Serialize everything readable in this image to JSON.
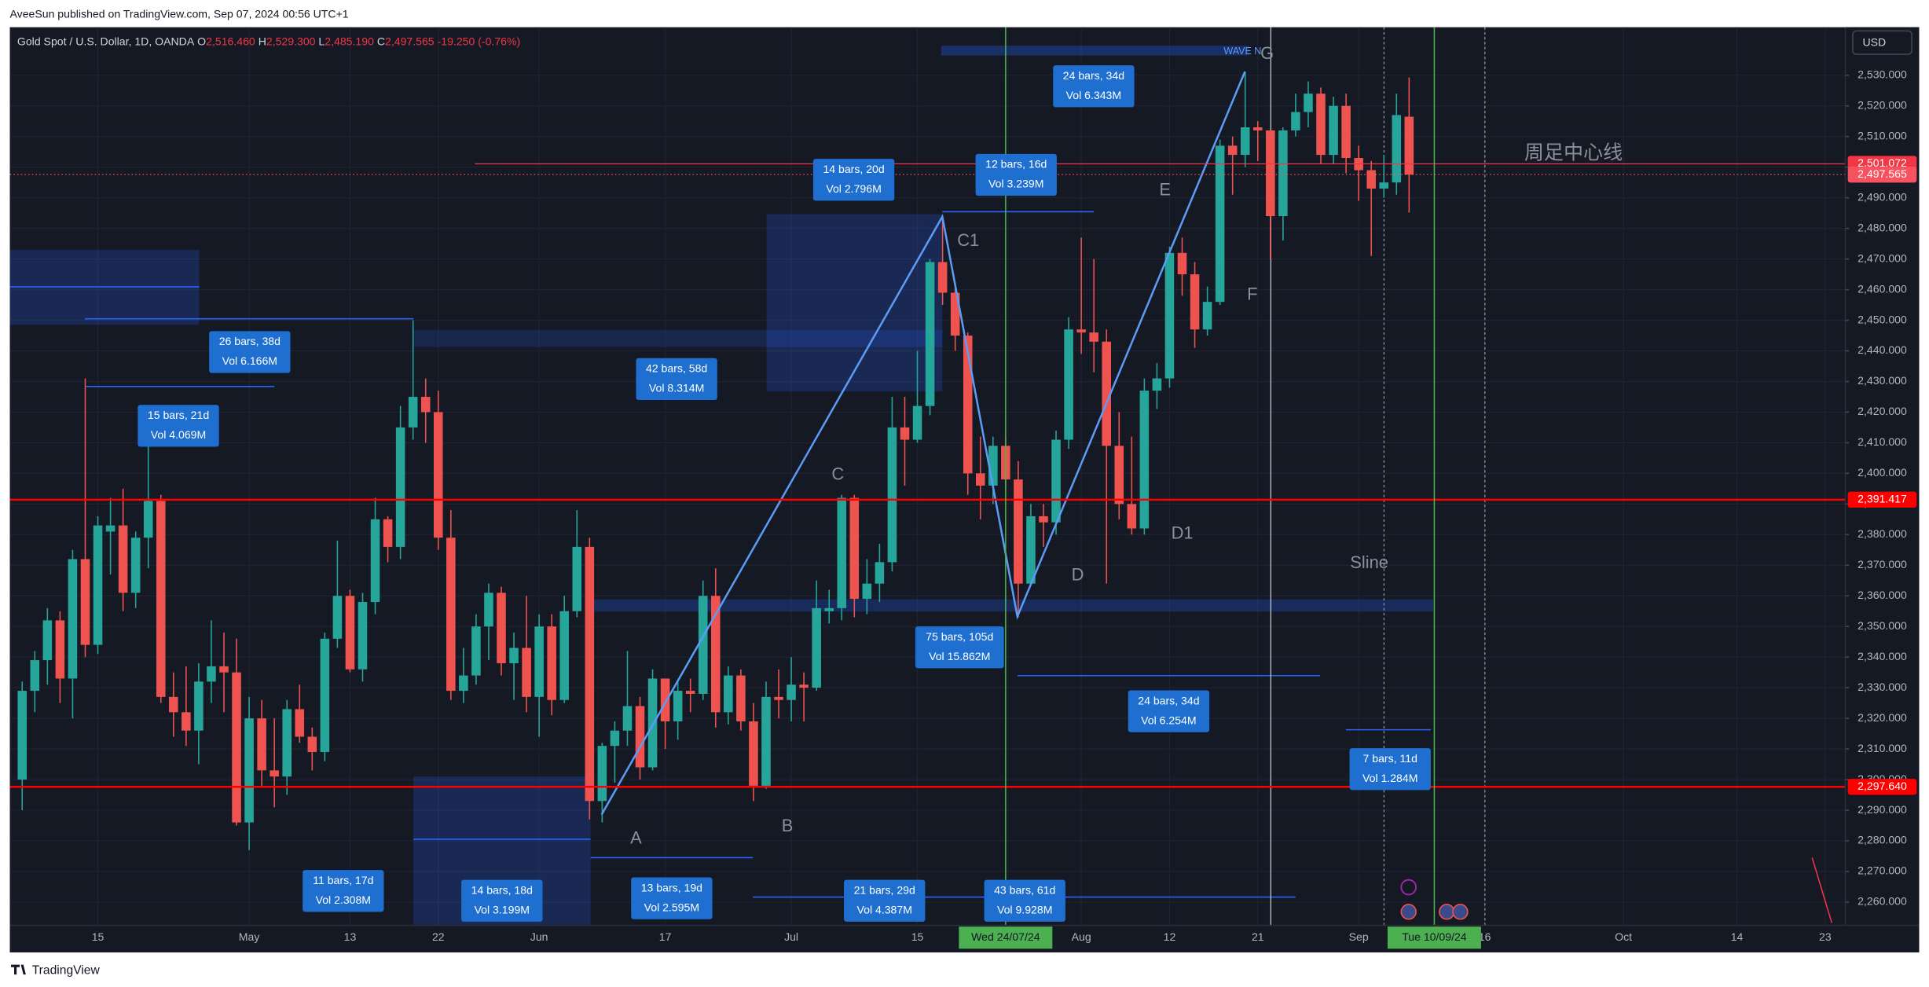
{
  "header": {
    "publisher": "AveeSun published on TradingView.com, Sep 07, 2024 00:56 UTC+1",
    "symbol": "Gold Spot / U.S. Dollar, 1D, OANDA",
    "ohlc": [
      {
        "key": "O",
        "value": "2,516.460"
      },
      {
        "key": "H",
        "value": "2,529.300"
      },
      {
        "key": "L",
        "value": "2,485.190"
      },
      {
        "key": "C",
        "value": "2,497.565"
      }
    ],
    "change": "-19.250 (-0.76%)",
    "currency": "USD"
  },
  "footer": {
    "brand": "TradingView"
  },
  "chart_data": {
    "type": "candlestick",
    "up_color": "#26a69a",
    "down_color": "#ef5350",
    "grid": true,
    "xlim": [
      -0.98,
      144.6
    ],
    "ylim": [
      2252.4,
      2545.7
    ],
    "xticks": [
      {
        "value": 6,
        "label": "15"
      },
      {
        "value": 18,
        "label": "May"
      },
      {
        "value": 26,
        "label": "13"
      },
      {
        "value": 33,
        "label": "22"
      },
      {
        "value": 41,
        "label": "Jun"
      },
      {
        "value": 51,
        "label": "17"
      },
      {
        "value": 61,
        "label": "Jul"
      },
      {
        "value": 71,
        "label": "15"
      },
      {
        "value": 84,
        "label": "Aug"
      },
      {
        "value": 91,
        "label": "12"
      },
      {
        "value": 98,
        "label": "21"
      },
      {
        "value": 106,
        "label": "Sep"
      },
      {
        "value": 116,
        "label": "16"
      },
      {
        "value": 127,
        "label": "Oct"
      },
      {
        "value": 136,
        "label": "14"
      },
      {
        "value": 143,
        "label": "23"
      }
    ],
    "yticks": [
      {
        "value": 2260,
        "label": "2,260.000"
      },
      {
        "value": 2270,
        "label": "2,270.000"
      },
      {
        "value": 2280,
        "label": "2,280.000"
      },
      {
        "value": 2290,
        "label": "2,290.000"
      },
      {
        "value": 2300,
        "label": "2,300.000"
      },
      {
        "value": 2310,
        "label": "2,310.000"
      },
      {
        "value": 2320,
        "label": "2,320.000"
      },
      {
        "value": 2330,
        "label": "2,330.000"
      },
      {
        "value": 2340,
        "label": "2,340.000"
      },
      {
        "value": 2350,
        "label": "2,350.000"
      },
      {
        "value": 2360,
        "label": "2,360.000"
      },
      {
        "value": 2370,
        "label": "2,370.000"
      },
      {
        "value": 2380,
        "label": "2,380.000"
      },
      {
        "value": 2390,
        "label": "2,390.000"
      },
      {
        "value": 2400,
        "label": "2,400.000"
      },
      {
        "value": 2410,
        "label": "2,410.000"
      },
      {
        "value": 2420,
        "label": "2,420.000"
      },
      {
        "value": 2430,
        "label": "2,430.000"
      },
      {
        "value": 2440,
        "label": "2,440.000"
      },
      {
        "value": 2450,
        "label": "2,450.000"
      },
      {
        "value": 2460,
        "label": "2,460.000"
      },
      {
        "value": 2470,
        "label": "2,470.000"
      },
      {
        "value": 2480,
        "label": "2,480.000"
      },
      {
        "value": 2490,
        "label": "2,490.000"
      },
      {
        "value": 2500,
        "label": "2,500.000"
      },
      {
        "value": 2510,
        "label": "2,510.000"
      },
      {
        "value": 2520,
        "label": "2,520.000"
      },
      {
        "value": 2530,
        "label": "2,530.000"
      }
    ],
    "open": [
      2300,
      2329,
      2339,
      2352,
      2333,
      2372,
      2344,
      2381,
      2383,
      2361,
      2379,
      2391,
      2327,
      2322,
      2316,
      2332,
      2337,
      2335,
      2286,
      2320,
      2303,
      2301,
      2323,
      2314,
      2309,
      2346,
      2360,
      2336,
      2358,
      2385,
      2376,
      2415,
      2425,
      2420,
      2379,
      2329,
      2334,
      2350,
      2361,
      2338,
      2343,
      2327,
      2350,
      2326,
      2355,
      2376,
      2293,
      2311,
      2316,
      2324,
      2304,
      2333,
      2319,
      2329,
      2328,
      2360,
      2322,
      2334,
      2319,
      2298,
      2327,
      2326,
      2331,
      2330,
      2355,
      2356,
      2392,
      2359,
      2364,
      2371,
      2415,
      2411,
      2422,
      2469,
      2459,
      2445,
      2400,
      2396,
      2409,
      2398,
      2364,
      2386,
      2384,
      2411,
      2447,
      2446,
      2443,
      2409,
      2390,
      2382,
      2427,
      2431,
      2472,
      2465,
      2447,
      2456,
      2507,
      2504,
      2513,
      2512,
      2484,
      2512,
      2518,
      2524,
      2504,
      2520,
      2503,
      2499,
      2493,
      2495,
      2516.46
    ],
    "high": [
      2332,
      2342,
      2356,
      2355,
      2375,
      2431,
      2386,
      2392,
      2395,
      2381,
      2418,
      2393,
      2335,
      2337,
      2338,
      2352,
      2348,
      2346,
      2327,
      2326,
      2320,
      2326,
      2331,
      2317,
      2348,
      2378,
      2362,
      2361,
      2392,
      2386,
      2422,
      2450,
      2431,
      2427,
      2388,
      2343,
      2354,
      2364,
      2363,
      2348,
      2360,
      2354,
      2354,
      2360,
      2388,
      2379,
      2312,
      2319,
      2342,
      2327,
      2336,
      2333,
      2332,
      2333,
      2365,
      2369,
      2337,
      2336,
      2325,
      2332,
      2336,
      2340,
      2335,
      2365,
      2362,
      2393,
      2393,
      2372,
      2377,
      2425,
      2425,
      2440,
      2470,
      2483,
      2462,
      2446,
      2412,
      2412,
      2412,
      2404,
      2390,
      2390,
      2414,
      2451,
      2477,
      2470,
      2447,
      2420,
      2412,
      2431,
      2436,
      2474,
      2477,
      2469,
      2461,
      2509,
      2510,
      2531,
      2515,
      2512,
      2513,
      2524,
      2528,
      2526,
      2523,
      2524,
      2507,
      2502,
      2504,
      2524,
      2529.3
    ],
    "low": [
      2290,
      2322,
      2331,
      2325,
      2320,
      2340,
      2341,
      2367,
      2355,
      2356,
      2369,
      2325,
      2314,
      2311,
      2305,
      2325,
      2322,
      2285,
      2277,
      2298,
      2291,
      2295,
      2312,
      2303,
      2306,
      2343,
      2335,
      2332,
      2354,
      2371,
      2372,
      2411,
      2410,
      2375,
      2326,
      2325,
      2331,
      2339,
      2334,
      2326,
      2322,
      2314,
      2321,
      2325,
      2353,
      2287,
      2286,
      2299,
      2311,
      2300,
      2303,
      2310,
      2313,
      2322,
      2326,
      2317,
      2318,
      2316,
      2293,
      2297,
      2320,
      2319,
      2319,
      2329,
      2351,
      2352,
      2353,
      2354,
      2358,
      2368,
      2396,
      2410,
      2419,
      2455,
      2440,
      2393,
      2385,
      2390,
      2395,
      2353,
      2364,
      2376,
      2380,
      2408,
      2439,
      2433,
      2364,
      2385,
      2380,
      2380,
      2421,
      2428,
      2458,
      2441,
      2445,
      2455,
      2491,
      2500,
      2502,
      2470,
      2476,
      2510,
      2513,
      2501,
      2501,
      2498,
      2489,
      2471,
      2490,
      2491,
      2485.19
    ],
    "close": [
      2329,
      2339,
      2352,
      2333,
      2372,
      2344,
      2383,
      2383,
      2361,
      2379,
      2391,
      2327,
      2322,
      2316,
      2332,
      2337,
      2335,
      2286,
      2320,
      2303,
      2301,
      2323,
      2314,
      2309,
      2346,
      2360,
      2336,
      2358,
      2385,
      2376,
      2415,
      2425,
      2420,
      2379,
      2329,
      2334,
      2350,
      2361,
      2338,
      2343,
      2327,
      2350,
      2326,
      2355,
      2376,
      2293,
      2311,
      2316,
      2324,
      2304,
      2333,
      2319,
      2329,
      2328,
      2360,
      2322,
      2334,
      2319,
      2298,
      2327,
      2326,
      2331,
      2330,
      2356,
      2356,
      2392,
      2359,
      2364,
      2371,
      2415,
      2411,
      2422,
      2469,
      2459,
      2445,
      2400,
      2396,
      2409,
      2398,
      2364,
      2386,
      2384,
      2411,
      2447,
      2446,
      2443,
      2409,
      2390,
      2382,
      2427,
      2431,
      2472,
      2465,
      2447,
      2456,
      2507,
      2504,
      2513,
      2512,
      2484,
      2512,
      2518,
      2524,
      2504,
      2520,
      2503,
      2499,
      2493,
      2495,
      2517,
      2497.565
    ],
    "levels": [
      {
        "value": 2501.072,
        "label": "2,501.072",
        "color": "#f23645"
      },
      {
        "value": 2497.565,
        "label": "2,497.565",
        "color": "#f7525f"
      },
      {
        "value": 2391.417,
        "label": "2,391.417",
        "color": "#ff0000"
      },
      {
        "value": 2297.64,
        "label": "2,297.640",
        "color": "#ff0000"
      }
    ],
    "markers": [
      {
        "x": 78,
        "label": "Wed 24/07/24",
        "color": "#4caf50"
      },
      {
        "x": 112,
        "label": "Tue 10/09/24",
        "color": "#4caf50"
      }
    ],
    "measures": [
      {
        "range": "15 bars, 21d",
        "volume": "Vol 4.069M"
      },
      {
        "range": "26 bars, 38d",
        "volume": "Vol 6.166M"
      },
      {
        "range": "42 bars, 58d",
        "volume": "Vol 8.314M"
      },
      {
        "range": "14 bars, 20d",
        "volume": "Vol 2.796M"
      },
      {
        "range": "12 bars, 16d",
        "volume": "Vol 3.239M"
      },
      {
        "range": "24 bars, 34d",
        "volume": "Vol 6.343M"
      },
      {
        "range": "75 bars, 105d",
        "volume": "Vol 15.862M"
      },
      {
        "range": "24 bars, 34d",
        "volume": "Vol 6.254M"
      },
      {
        "range": "7 bars, 11d",
        "volume": "Vol 1.284M"
      },
      {
        "range": "11 bars, 17d",
        "volume": "Vol 2.308M"
      },
      {
        "range": "14 bars, 18d",
        "volume": "Vol 3.199M"
      },
      {
        "range": "13 bars, 19d",
        "volume": "Vol 2.595M"
      },
      {
        "range": "21 bars, 29d",
        "volume": "Vol 4.387M"
      },
      {
        "range": "43 bars, 61d",
        "volume": "Vol 9.928M"
      }
    ],
    "annotations": [
      "A",
      "B",
      "C",
      "C1",
      "D",
      "D1",
      "E",
      "F",
      "G",
      "WAVE N",
      "Sline",
      "周足中心线"
    ]
  }
}
